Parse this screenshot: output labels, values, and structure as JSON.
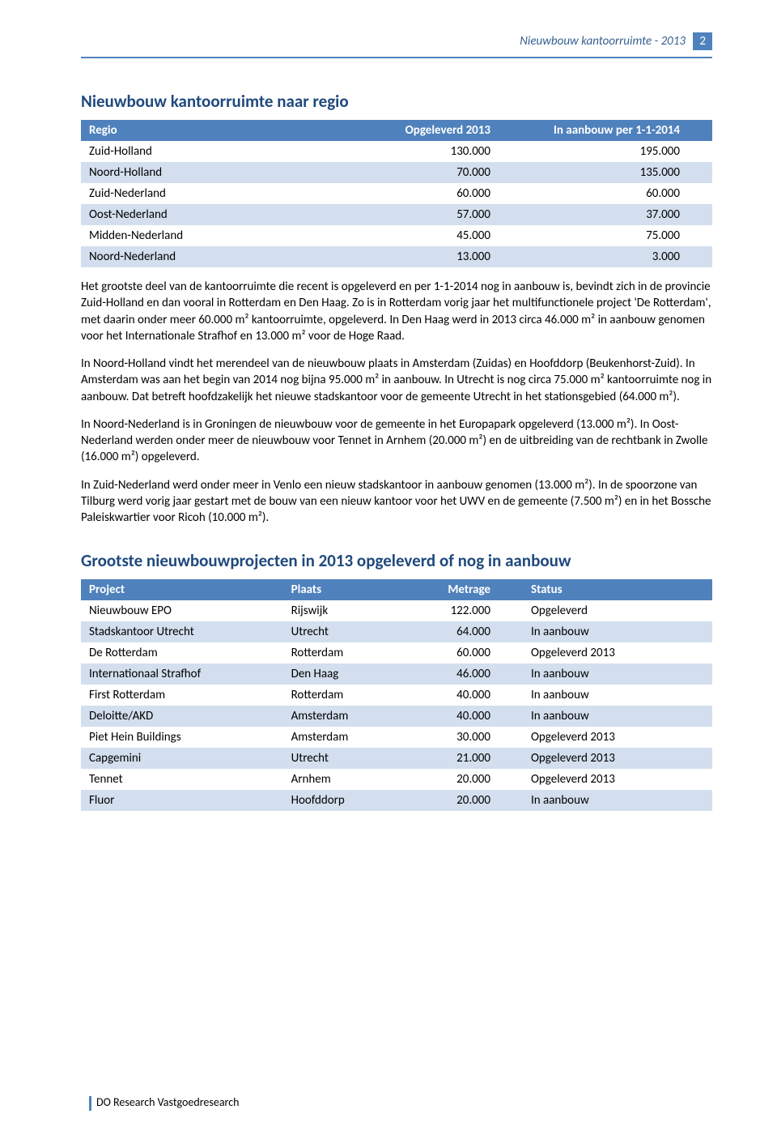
{
  "running_head": {
    "title": "Nieuwbouw kantoorruimte - 2013",
    "page_num": "2",
    "title_color": "#365f91",
    "bar_color": "#4f81bd"
  },
  "section1": {
    "title": "Nieuwbouw kantoorruimte naar regio",
    "title_color": "#1f497d",
    "columns": [
      "Regio",
      "Opgeleverd 2013",
      "In aanbouw per 1-1-2014"
    ],
    "rows": [
      [
        "Zuid-Holland",
        "130.000",
        "195.000"
      ],
      [
        "Noord-Holland",
        "70.000",
        "135.000"
      ],
      [
        "Zuid-Nederland",
        "60.000",
        "60.000"
      ],
      [
        "Oost-Nederland",
        "57.000",
        "37.000"
      ],
      [
        "Midden-Nederland",
        "45.000",
        "75.000"
      ],
      [
        "Noord-Nederland",
        "13.000",
        "3.000"
      ]
    ],
    "header_bg": "#4f81bd",
    "band_bg": "#d3dfee"
  },
  "paragraphs": [
    "Het grootste deel van de kantoorruimte die recent is opgeleverd en per 1-1-2014 nog in aanbouw is, bevindt zich in de provincie Zuid-Holland en dan vooral in Rotterdam en Den Haag. Zo is in Rotterdam vorig jaar het multifunctionele project 'De Rotterdam', met daarin onder meer 60.000 m² kantoorruimte, opgeleverd. In Den Haag werd in 2013 circa 46.000 m² in aanbouw genomen voor het Internationale Strafhof en 13.000 m² voor de Hoge Raad.",
    "In Noord-Holland vindt het merendeel van de nieuwbouw plaats in Amsterdam (Zuidas) en Hoofddorp (Beukenhorst-Zuid). In Amsterdam was aan het begin van 2014 nog bijna 95.000 m² in aanbouw. In Utrecht is nog circa 75.000 m² kantoorruimte nog in aanbouw. Dat betreft hoofdzakelijk het nieuwe stadskantoor voor de gemeente Utrecht in het stationsgebied (64.000 m²).",
    "In Noord-Nederland is in Groningen de nieuwbouw voor de gemeente in het Europapark opgeleverd (13.000 m²). In Oost-Nederland werden onder meer de nieuwbouw voor Tennet in Arnhem (20.000 m²) en de uitbreiding van de rechtbank in Zwolle (16.000 m²) opgeleverd.",
    "In Zuid-Nederland werd onder meer in Venlo een nieuw stadskantoor in aanbouw genomen (13.000 m²). In de spoorzone van Tilburg werd vorig jaar gestart met de bouw van een nieuw kantoor voor het UWV en de gemeente (7.500 m²) en in het Bossche Paleiskwartier voor Ricoh (10.000 m²)."
  ],
  "section2": {
    "title": "Grootste nieuwbouwprojecten in 2013 opgeleverd of nog in aanbouw",
    "title_color": "#1f497d",
    "columns": [
      "Project",
      "Plaats",
      "Metrage",
      "Status"
    ],
    "rows": [
      [
        "Nieuwbouw EPO",
        "Rijswijk",
        "122.000",
        "Opgeleverd"
      ],
      [
        "Stadskantoor Utrecht",
        "Utrecht",
        "64.000",
        "In aanbouw"
      ],
      [
        "De Rotterdam",
        "Rotterdam",
        "60.000",
        "Opgeleverd 2013"
      ],
      [
        "Internationaal Strafhof",
        "Den Haag",
        "46.000",
        "In aanbouw"
      ],
      [
        "First Rotterdam",
        "Rotterdam",
        "40.000",
        "In aanbouw"
      ],
      [
        "Deloitte/AKD",
        "Amsterdam",
        "40.000",
        "In aanbouw"
      ],
      [
        "Piet Hein Buildings",
        "Amsterdam",
        "30.000",
        "Opgeleverd 2013"
      ],
      [
        "Capgemini",
        "Utrecht",
        "21.000",
        "Opgeleverd 2013"
      ],
      [
        "Tennet",
        "Arnhem",
        "20.000",
        "Opgeleverd 2013"
      ],
      [
        "Fluor",
        "Hoofddorp",
        "20.000",
        "In aanbouw"
      ]
    ],
    "header_bg": "#4f81bd",
    "band_bg": "#d3dfee"
  },
  "footer": {
    "text": "DO Research Vastgoedresearch",
    "bar_color": "#4f81bd"
  }
}
